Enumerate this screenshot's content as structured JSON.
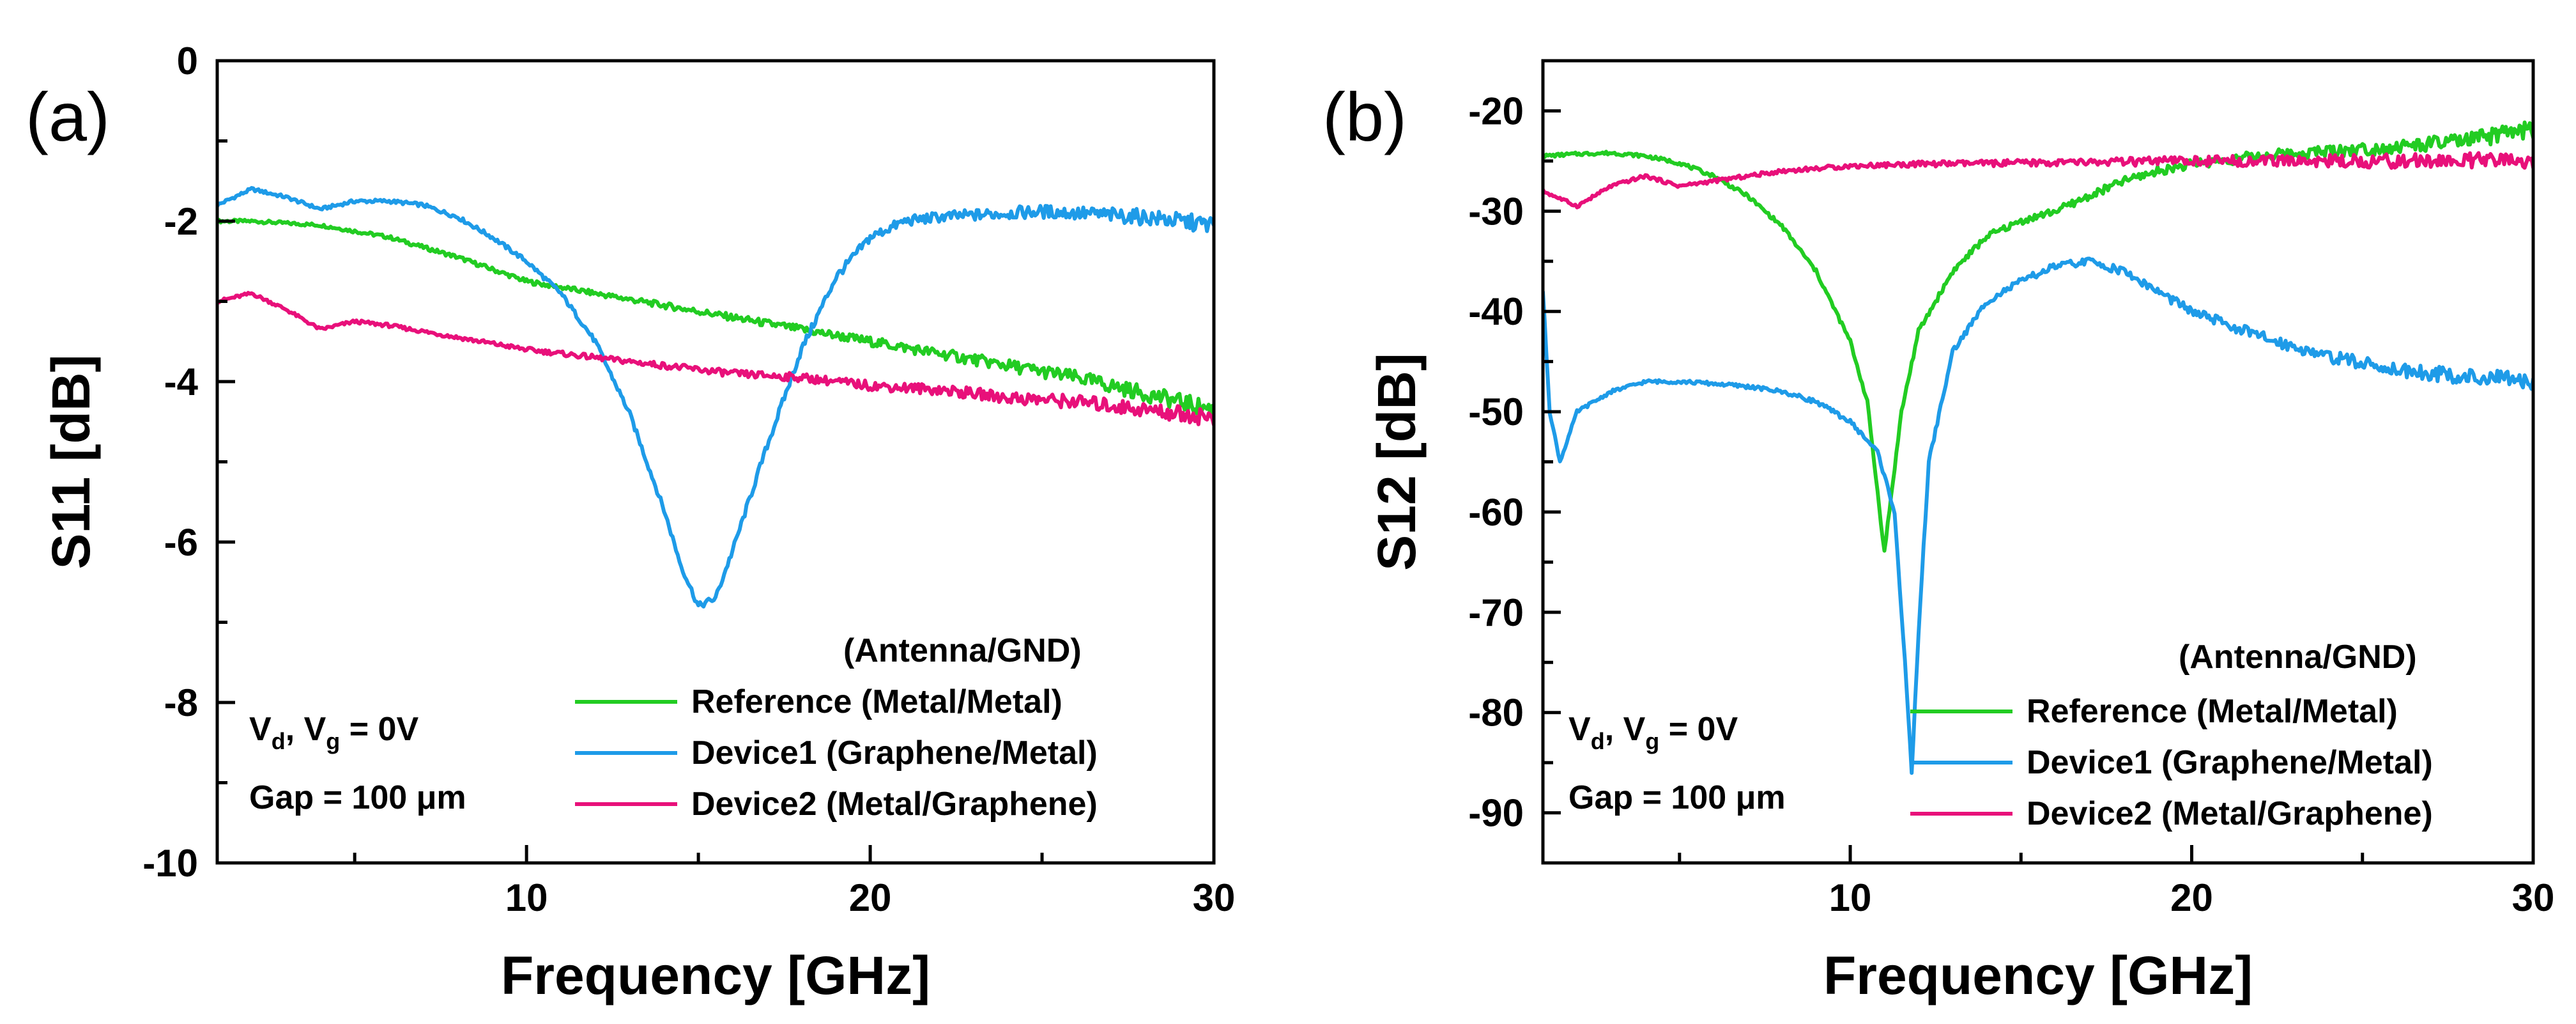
{
  "chart_data": [
    {
      "type": "line",
      "panel_label": "(a)",
      "xlabel": "Frequency [GHz]",
      "ylabel": "S11 [dB]",
      "xlim": [
        1,
        30
      ],
      "ylim": [
        -10,
        0
      ],
      "xticks": [
        10,
        20,
        30
      ],
      "yticks": [
        -10,
        -8,
        -6,
        -4,
        -2,
        0
      ],
      "legend_title": "(Antenna/GND)",
      "legend_position": "bottom-right",
      "conditions": {
        "line1": {
          "v": "V",
          "sub1": "d",
          "mid": ", V",
          "sub2": "g",
          "tail": " = 0V"
        },
        "line2": "Gap = 100 μm"
      },
      "series": [
        {
          "name": "Reference (Metal/Metal)",
          "color": "#22cc22",
          "points": [
            [
              1,
              -2.0
            ],
            [
              2,
              -2.0
            ],
            [
              4,
              -2.05
            ],
            [
              6,
              -2.2
            ],
            [
              8,
              -2.45
            ],
            [
              10,
              -2.75
            ],
            [
              12,
              -2.9
            ],
            [
              14,
              -3.05
            ],
            [
              16,
              -3.2
            ],
            [
              18,
              -3.35
            ],
            [
              20,
              -3.5
            ],
            [
              22,
              -3.65
            ],
            [
              24,
              -3.8
            ],
            [
              26,
              -3.95
            ],
            [
              28,
              -4.15
            ],
            [
              30,
              -4.35
            ]
          ]
        },
        {
          "name": "Device1 (Graphene/Metal)",
          "color": "#1e9be8",
          "points": [
            [
              1,
              -1.8
            ],
            [
              2,
              -1.6
            ],
            [
              3,
              -1.7
            ],
            [
              4,
              -1.85
            ],
            [
              5,
              -1.75
            ],
            [
              6,
              -1.75
            ],
            [
              7,
              -1.8
            ],
            [
              8,
              -1.95
            ],
            [
              9,
              -2.2
            ],
            [
              10,
              -2.5
            ],
            [
              11,
              -2.9
            ],
            [
              12,
              -3.5
            ],
            [
              13,
              -4.4
            ],
            [
              14,
              -5.6
            ],
            [
              14.5,
              -6.3
            ],
            [
              15,
              -6.8
            ],
            [
              15.5,
              -6.7
            ],
            [
              16,
              -6.1
            ],
            [
              17,
              -4.8
            ],
            [
              18,
              -3.6
            ],
            [
              19,
              -2.7
            ],
            [
              20,
              -2.2
            ],
            [
              21,
              -2.0
            ],
            [
              22,
              -1.95
            ],
            [
              24,
              -1.9
            ],
            [
              25,
              -1.88
            ],
            [
              26,
              -1.9
            ],
            [
              28,
              -1.95
            ],
            [
              30,
              -2.05
            ]
          ]
        },
        {
          "name": "Device2 (Metal/Graphene)",
          "color": "#e8107a",
          "points": [
            [
              1,
              -3.0
            ],
            [
              2,
              -2.9
            ],
            [
              3,
              -3.1
            ],
            [
              4,
              -3.35
            ],
            [
              5,
              -3.25
            ],
            [
              6,
              -3.3
            ],
            [
              8,
              -3.45
            ],
            [
              10,
              -3.6
            ],
            [
              12,
              -3.7
            ],
            [
              14,
              -3.8
            ],
            [
              16,
              -3.9
            ],
            [
              18,
              -3.95
            ],
            [
              20,
              -4.05
            ],
            [
              22,
              -4.1
            ],
            [
              24,
              -4.2
            ],
            [
              26,
              -4.25
            ],
            [
              28,
              -4.35
            ],
            [
              30,
              -4.45
            ]
          ]
        }
      ]
    },
    {
      "type": "line",
      "panel_label": "(b)",
      "xlabel": "Frequency [GHz]",
      "ylabel": "S12 [dB]",
      "xlim": [
        1,
        30
      ],
      "ylim": [
        -95,
        -15
      ],
      "xticks": [
        10,
        20,
        30
      ],
      "yticks": [
        -90,
        -80,
        -70,
        -60,
        -50,
        -40,
        -30,
        -20
      ],
      "legend_title": "(Antenna/GND)",
      "legend_position": "bottom-right",
      "conditions": {
        "line1": {
          "v": "V",
          "sub1": "d",
          "mid": ", V",
          "sub2": "g",
          "tail": " = 0V"
        },
        "line2": "Gap = 100 μm"
      },
      "series": [
        {
          "name": "Reference (Metal/Metal)",
          "color": "#22cc22",
          "points": [
            [
              1,
              -24.5
            ],
            [
              2,
              -24.3
            ],
            [
              3,
              -24.2
            ],
            [
              4,
              -24.5
            ],
            [
              5,
              -25.2
            ],
            [
              6,
              -26.5
            ],
            [
              7,
              -28.5
            ],
            [
              8,
              -31.5
            ],
            [
              9,
              -36
            ],
            [
              10,
              -43
            ],
            [
              10.5,
              -49
            ],
            [
              11,
              -64
            ],
            [
              11.5,
              -50
            ],
            [
              12,
              -42
            ],
            [
              13,
              -36
            ],
            [
              14,
              -32.5
            ],
            [
              15,
              -31
            ],
            [
              16,
              -30
            ],
            [
              17,
              -28.5
            ],
            [
              18,
              -27
            ],
            [
              19,
              -26
            ],
            [
              20,
              -25.3
            ],
            [
              22,
              -24.5
            ],
            [
              24,
              -24
            ],
            [
              26,
              -23.6
            ],
            [
              28,
              -23
            ],
            [
              30,
              -21.8
            ]
          ]
        },
        {
          "name": "Device1 (Graphene/Metal)",
          "color": "#1e9be8",
          "points": [
            [
              1,
              -38
            ],
            [
              1.2,
              -50
            ],
            [
              1.5,
              -55
            ],
            [
              2,
              -50
            ],
            [
              3,
              -48
            ],
            [
              4,
              -47
            ],
            [
              5,
              -47
            ],
            [
              6,
              -47.2
            ],
            [
              7,
              -47.5
            ],
            [
              8,
              -48
            ],
            [
              9,
              -49
            ],
            [
              10,
              -51
            ],
            [
              10.8,
              -54
            ],
            [
              11.3,
              -60
            ],
            [
              11.6,
              -75
            ],
            [
              11.8,
              -86
            ],
            [
              12.0,
              -72
            ],
            [
              12.3,
              -55
            ],
            [
              13,
              -44
            ],
            [
              14,
              -39
            ],
            [
              15,
              -37
            ],
            [
              16,
              -35.5
            ],
            [
              17,
              -35
            ],
            [
              18,
              -36
            ],
            [
              19,
              -38
            ],
            [
              20,
              -40
            ],
            [
              22,
              -42.5
            ],
            [
              24,
              -44.5
            ],
            [
              26,
              -45.8
            ],
            [
              28,
              -46.5
            ],
            [
              30,
              -47
            ]
          ]
        },
        {
          "name": "Device2 (Metal/Graphene)",
          "color": "#e8107a",
          "points": [
            [
              1,
              -28
            ],
            [
              2,
              -29.5
            ],
            [
              3,
              -27.5
            ],
            [
              4,
              -26.5
            ],
            [
              5,
              -27.5
            ],
            [
              6,
              -27
            ],
            [
              7,
              -26.5
            ],
            [
              8,
              -26
            ],
            [
              10,
              -25.5
            ],
            [
              12,
              -25.3
            ],
            [
              15,
              -25.2
            ],
            [
              18,
              -25.1
            ],
            [
              20,
              -25
            ],
            [
              22,
              -25
            ],
            [
              25,
              -25
            ],
            [
              28,
              -25
            ],
            [
              30,
              -25
            ]
          ]
        }
      ]
    }
  ]
}
